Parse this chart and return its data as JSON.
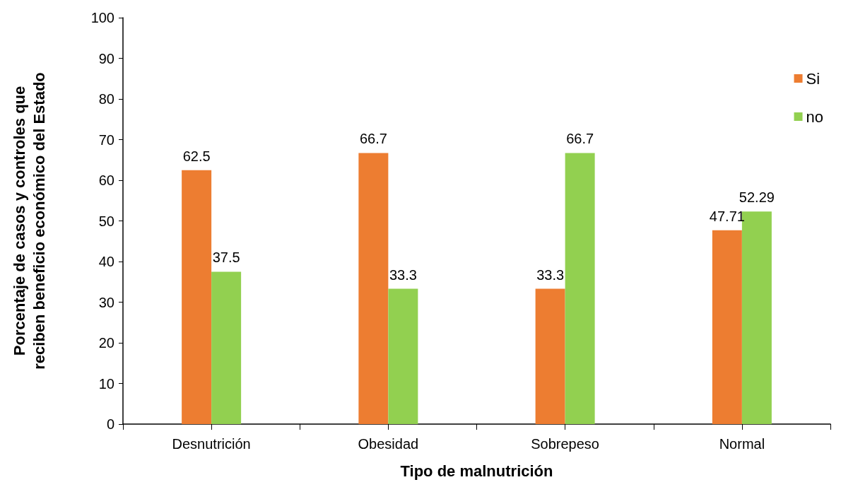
{
  "chart_data": {
    "type": "bar",
    "xlabel": "Tipo de malnutrición",
    "ylabel": "Porcentaje de casos y controles que\nreciben beneficio económico del Estado",
    "categories": [
      "Desnutrición",
      "Obesidad",
      "Sobrepeso",
      "Normal"
    ],
    "series": [
      {
        "name": "Si",
        "color": "#ed7d31",
        "values": [
          62.5,
          66.7,
          33.3,
          47.71
        ]
      },
      {
        "name": "no",
        "color": "#92d050",
        "values": [
          37.5,
          33.3,
          66.7,
          52.29
        ]
      }
    ],
    "ylim": [
      0,
      100
    ],
    "yticks": [
      0,
      10,
      20,
      30,
      40,
      50,
      60,
      70,
      80,
      90,
      100
    ],
    "data_labels": true,
    "grid": false,
    "legend": "top right"
  }
}
